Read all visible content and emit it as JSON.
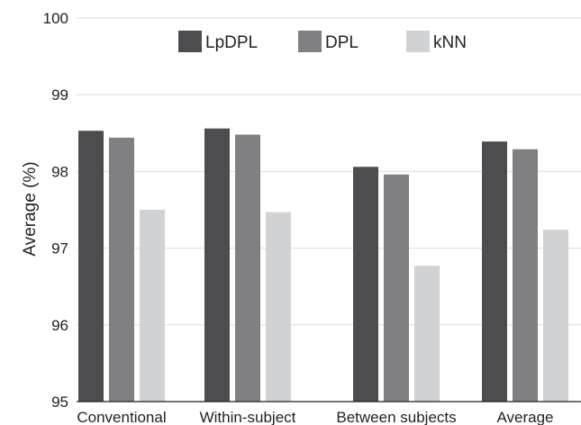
{
  "chart_data": {
    "type": "bar",
    "title": "",
    "xlabel": "",
    "ylabel": "Average (%)",
    "ylim": [
      95,
      100
    ],
    "yticks": [
      95,
      96,
      97,
      98,
      99,
      100
    ],
    "grid": true,
    "legend_position": "top",
    "categories": [
      "Conventional",
      "Within-subject",
      "Between subjects",
      "Average"
    ],
    "series": [
      {
        "name": "LpDPL",
        "color": "#4d4d4f",
        "values": [
          98.53,
          98.56,
          98.06,
          98.39
        ]
      },
      {
        "name": "DPL",
        "color": "#808083",
        "values": [
          98.44,
          98.48,
          97.96,
          98.29
        ]
      },
      {
        "name": "kNN",
        "color": "#d1d2d4",
        "values": [
          97.5,
          97.47,
          96.77,
          97.24
        ]
      }
    ]
  }
}
